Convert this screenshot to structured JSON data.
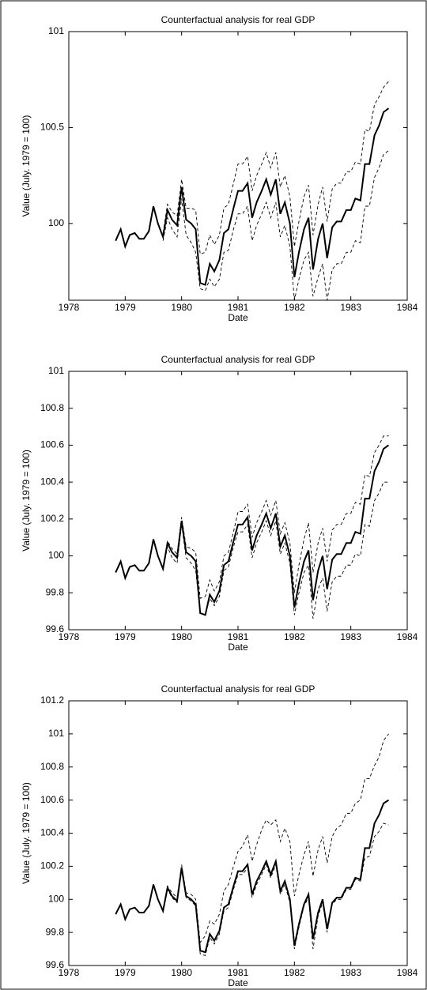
{
  "chart_data": [
    {
      "type": "line",
      "title": "Counterfactual analysis for real GDP",
      "xlabel": "Date",
      "ylabel": "Value (July. 1979 = 100)",
      "xlim": [
        1978,
        1984
      ],
      "xticks": [
        1978,
        1979,
        1980,
        1981,
        1982,
        1983,
        1984
      ],
      "ylim": [
        99.6,
        101
      ],
      "yticks": [
        100,
        100.5,
        101
      ],
      "x": [
        1978.83,
        1978.92,
        1979.0,
        1979.08,
        1979.17,
        1979.25,
        1979.33,
        1979.42,
        1979.5,
        1979.58,
        1979.67,
        1979.75,
        1979.83,
        1979.92,
        1980.0,
        1980.08,
        1980.17,
        1980.25,
        1980.33,
        1980.42,
        1980.5,
        1980.58,
        1980.67,
        1980.75,
        1980.83,
        1980.92,
        1981.0,
        1981.08,
        1981.17,
        1981.25,
        1981.33,
        1981.42,
        1981.5,
        1981.58,
        1981.67,
        1981.75,
        1981.83,
        1981.92,
        1982.0,
        1982.08,
        1982.17,
        1982.25,
        1982.33,
        1982.42,
        1982.5,
        1982.58,
        1982.67,
        1982.75,
        1982.83,
        1982.92,
        1983.0,
        1983.08,
        1983.17,
        1983.25,
        1983.33,
        1983.42,
        1983.5,
        1983.58,
        1983.67
      ],
      "series": [
        {
          "style": "solid",
          "color": "#000000",
          "values": [
            99.91,
            99.97,
            99.88,
            99.94,
            99.95,
            99.92,
            99.92,
            99.96,
            100.09,
            100.0,
            99.93,
            100.07,
            100.02,
            99.99,
            100.19,
            100.02,
            100.0,
            99.97,
            99.69,
            99.68,
            99.79,
            99.75,
            99.81,
            99.95,
            99.97,
            100.08,
            100.17,
            100.17,
            100.21,
            100.03,
            100.11,
            100.17,
            100.23,
            100.15,
            100.23,
            100.05,
            100.11,
            100.0,
            99.72,
            99.85,
            99.97,
            100.03,
            99.76,
            99.92,
            100.0,
            99.82,
            99.98,
            100.01,
            100.01,
            100.07,
            100.07,
            100.13,
            100.12,
            100.31,
            100.31,
            100.46,
            100.51,
            100.58,
            100.6
          ]
        },
        {
          "style": "dashed",
          "color": "#000000",
          "values": [
            null,
            null,
            null,
            null,
            null,
            null,
            null,
            null,
            null,
            null,
            99.95,
            100.1,
            100.06,
            100.04,
            100.23,
            100.08,
            100.08,
            100.07,
            99.84,
            99.85,
            99.94,
            99.89,
            99.94,
            100.08,
            100.1,
            100.21,
            100.31,
            100.31,
            100.35,
            100.17,
            100.25,
            100.31,
            100.37,
            100.29,
            100.37,
            100.19,
            100.25,
            100.14,
            99.88,
            100.01,
            100.14,
            100.2,
            99.94,
            100.1,
            100.19,
            100.01,
            100.18,
            100.21,
            100.21,
            100.27,
            100.27,
            100.32,
            100.31,
            100.49,
            100.48,
            100.62,
            100.66,
            100.71,
            100.74
          ]
        },
        {
          "style": "dashed",
          "color": "#000000",
          "values": [
            null,
            null,
            null,
            null,
            null,
            null,
            null,
            null,
            null,
            null,
            99.91,
            100.03,
            99.97,
            99.93,
            100.13,
            99.94,
            99.9,
            99.85,
            99.66,
            99.65,
            99.71,
            99.67,
            99.71,
            99.85,
            99.86,
            99.97,
            100.05,
            100.05,
            100.09,
            99.91,
            99.99,
            100.05,
            100.11,
            100.03,
            100.11,
            99.93,
            99.99,
            99.88,
            99.6,
            99.71,
            99.81,
            99.85,
            99.62,
            99.72,
            99.79,
            99.6,
            99.76,
            99.79,
            99.79,
            99.85,
            99.85,
            99.91,
            99.9,
            100.09,
            100.09,
            100.24,
            100.29,
            100.36,
            100.38
          ]
        }
      ]
    },
    {
      "type": "line",
      "title": "Counterfactual analysis for real GDP",
      "xlabel": "Date",
      "ylabel": "Value (July. 1979 = 100)",
      "xlim": [
        1978,
        1984
      ],
      "xticks": [
        1978,
        1979,
        1980,
        1981,
        1982,
        1983,
        1984
      ],
      "ylim": [
        99.6,
        101
      ],
      "yticks": [
        99.6,
        99.8,
        100,
        100.2,
        100.4,
        100.6,
        100.8,
        101
      ],
      "x": [
        1978.83,
        1978.92,
        1979.0,
        1979.08,
        1979.17,
        1979.25,
        1979.33,
        1979.42,
        1979.5,
        1979.58,
        1979.67,
        1979.75,
        1979.83,
        1979.92,
        1980.0,
        1980.08,
        1980.17,
        1980.25,
        1980.33,
        1980.42,
        1980.5,
        1980.58,
        1980.67,
        1980.75,
        1980.83,
        1980.92,
        1981.0,
        1981.08,
        1981.17,
        1981.25,
        1981.33,
        1981.42,
        1981.5,
        1981.58,
        1981.67,
        1981.75,
        1981.83,
        1981.92,
        1982.0,
        1982.08,
        1982.17,
        1982.25,
        1982.33,
        1982.42,
        1982.5,
        1982.58,
        1982.67,
        1982.75,
        1982.83,
        1982.92,
        1983.0,
        1983.08,
        1983.17,
        1983.25,
        1983.33,
        1983.42,
        1983.5,
        1983.58,
        1983.67
      ],
      "series": [
        {
          "style": "solid",
          "color": "#000000",
          "values": [
            99.91,
            99.97,
            99.88,
            99.94,
            99.95,
            99.92,
            99.92,
            99.96,
            100.09,
            100.0,
            99.93,
            100.07,
            100.02,
            99.99,
            100.19,
            100.02,
            100.0,
            99.97,
            99.69,
            99.68,
            99.79,
            99.75,
            99.81,
            99.95,
            99.97,
            100.08,
            100.17,
            100.17,
            100.21,
            100.03,
            100.11,
            100.17,
            100.23,
            100.15,
            100.23,
            100.05,
            100.11,
            100.0,
            99.72,
            99.85,
            99.97,
            100.03,
            99.76,
            99.92,
            100.0,
            99.82,
            99.98,
            100.01,
            100.01,
            100.07,
            100.07,
            100.13,
            100.12,
            100.31,
            100.31,
            100.46,
            100.51,
            100.58,
            100.6
          ]
        },
        {
          "style": "dashed",
          "color": "#000000",
          "values": [
            null,
            null,
            null,
            null,
            null,
            null,
            null,
            null,
            null,
            null,
            99.94,
            100.08,
            100.04,
            100.01,
            100.21,
            100.05,
            100.04,
            100.02,
            99.77,
            99.78,
            99.87,
            99.81,
            99.86,
            100.0,
            100.02,
            100.13,
            100.24,
            100.24,
            100.28,
            100.1,
            100.18,
            100.24,
            100.3,
            100.22,
            100.3,
            100.12,
            100.18,
            100.07,
            99.8,
            99.95,
            100.09,
            100.18,
            99.91,
            100.07,
            100.15,
            99.97,
            100.14,
            100.17,
            100.17,
            100.23,
            100.23,
            100.29,
            100.28,
            100.44,
            100.43,
            100.56,
            100.6,
            100.65,
            100.65
          ]
        },
        {
          "style": "dashed",
          "color": "#000000",
          "values": [
            null,
            null,
            null,
            null,
            null,
            null,
            null,
            null,
            null,
            null,
            99.92,
            100.05,
            99.99,
            99.96,
            100.17,
            99.99,
            99.96,
            99.92,
            99.69,
            99.68,
            99.77,
            99.73,
            99.78,
            99.92,
            99.94,
            100.05,
            100.13,
            100.13,
            100.17,
            99.99,
            100.07,
            100.13,
            100.19,
            100.11,
            100.19,
            100.01,
            100.07,
            99.96,
            99.68,
            99.8,
            99.91,
            99.95,
            99.66,
            99.82,
            99.88,
            99.7,
            99.86,
            99.89,
            99.89,
            99.95,
            99.95,
            100.01,
            100.0,
            100.17,
            100.16,
            100.3,
            100.34,
            100.4,
            100.4
          ]
        }
      ]
    },
    {
      "type": "line",
      "title": "Counterfactual analysis for real GDP",
      "xlabel": "Date",
      "ylabel": "Value (July. 1979 = 100)",
      "xlim": [
        1978,
        1984
      ],
      "xticks": [
        1978,
        1979,
        1980,
        1981,
        1982,
        1983,
        1984
      ],
      "ylim": [
        99.6,
        101.2
      ],
      "yticks": [
        99.6,
        99.8,
        100,
        100.2,
        100.4,
        100.6,
        100.8,
        101,
        101.2
      ],
      "x": [
        1978.83,
        1978.92,
        1979.0,
        1979.08,
        1979.17,
        1979.25,
        1979.33,
        1979.42,
        1979.5,
        1979.58,
        1979.67,
        1979.75,
        1979.83,
        1979.92,
        1980.0,
        1980.08,
        1980.17,
        1980.25,
        1980.33,
        1980.42,
        1980.5,
        1980.58,
        1980.67,
        1980.75,
        1980.83,
        1980.92,
        1981.0,
        1981.08,
        1981.17,
        1981.25,
        1981.33,
        1981.42,
        1981.5,
        1981.58,
        1981.67,
        1981.75,
        1981.83,
        1981.92,
        1982.0,
        1982.08,
        1982.17,
        1982.25,
        1982.33,
        1982.42,
        1982.5,
        1982.58,
        1982.67,
        1982.75,
        1982.83,
        1982.92,
        1983.0,
        1983.08,
        1983.17,
        1983.25,
        1983.33,
        1983.42,
        1983.5,
        1983.58,
        1983.67
      ],
      "series": [
        {
          "style": "solid",
          "color": "#000000",
          "values": [
            99.91,
            99.97,
            99.88,
            99.94,
            99.95,
            99.92,
            99.92,
            99.96,
            100.09,
            100.0,
            99.93,
            100.07,
            100.02,
            99.99,
            100.19,
            100.02,
            100.0,
            99.97,
            99.69,
            99.68,
            99.79,
            99.75,
            99.81,
            99.95,
            99.97,
            100.08,
            100.17,
            100.17,
            100.21,
            100.03,
            100.11,
            100.17,
            100.23,
            100.15,
            100.23,
            100.05,
            100.11,
            100.0,
            99.72,
            99.85,
            99.97,
            100.03,
            99.76,
            99.92,
            100.0,
            99.82,
            99.98,
            100.01,
            100.01,
            100.07,
            100.07,
            100.13,
            100.12,
            100.31,
            100.31,
            100.46,
            100.51,
            100.58,
            100.6
          ]
        },
        {
          "style": "dashed",
          "color": "#000000",
          "values": [
            null,
            null,
            null,
            null,
            null,
            null,
            null,
            null,
            null,
            null,
            99.94,
            100.08,
            100.04,
            100.01,
            100.21,
            100.04,
            100.03,
            100.0,
            99.74,
            99.78,
            99.87,
            99.85,
            99.91,
            100.05,
            100.09,
            100.2,
            100.29,
            100.32,
            100.39,
            100.23,
            100.33,
            100.42,
            100.48,
            100.45,
            100.48,
            100.35,
            100.43,
            100.35,
            100.02,
            100.15,
            100.27,
            100.35,
            100.14,
            100.3,
            100.38,
            100.22,
            100.38,
            100.43,
            100.45,
            100.52,
            100.52,
            100.58,
            100.6,
            100.73,
            100.73,
            100.81,
            100.86,
            100.96,
            101.0
          ]
        },
        {
          "style": "dashed",
          "color": "#000000",
          "values": [
            null,
            null,
            null,
            null,
            null,
            null,
            null,
            null,
            null,
            null,
            99.92,
            100.06,
            100.01,
            99.98,
            100.18,
            100.01,
            99.99,
            99.96,
            99.67,
            99.66,
            99.77,
            99.73,
            99.79,
            99.93,
            99.95,
            100.06,
            100.15,
            100.15,
            100.19,
            100.01,
            100.09,
            100.15,
            100.21,
            100.13,
            100.21,
            100.03,
            100.09,
            99.98,
            99.7,
            99.83,
            99.96,
            100.01,
            99.7,
            99.9,
            99.98,
            99.8,
            99.97,
            100.0,
            100.0,
            100.06,
            100.06,
            100.12,
            100.11,
            100.25,
            100.26,
            100.38,
            100.41,
            100.46,
            100.45
          ]
        }
      ]
    }
  ]
}
